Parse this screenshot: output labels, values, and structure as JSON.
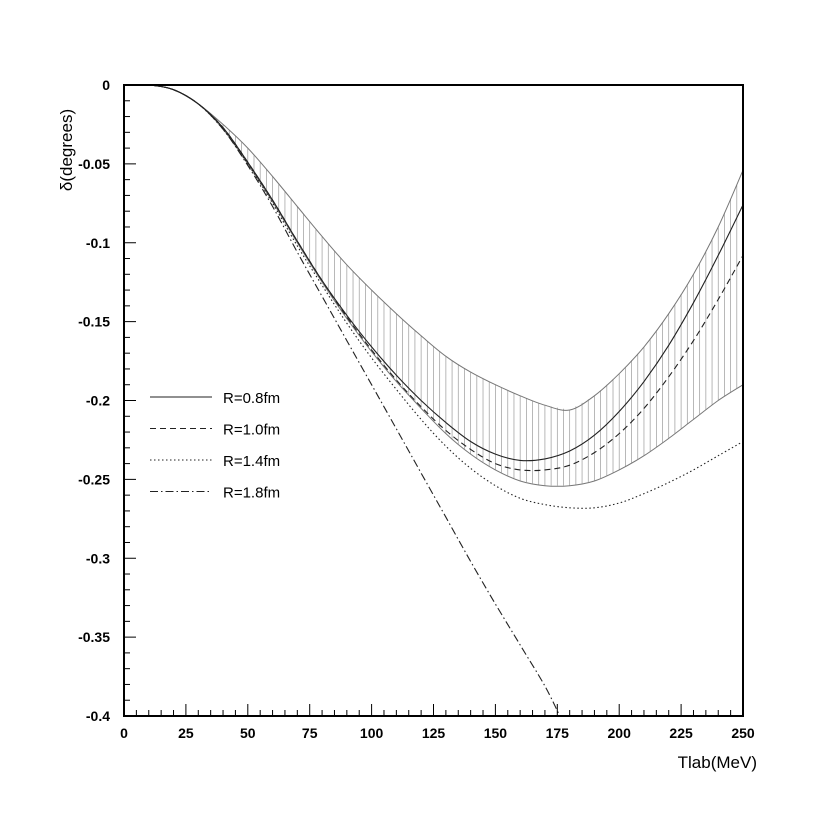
{
  "chart_data": {
    "type": "line",
    "title": "",
    "xlabel": "Tlab(MeV)",
    "ylabel": "δ(degrees)",
    "xlim": [
      0,
      250
    ],
    "ylim": [
      -0.4,
      0
    ],
    "x_ticks": [
      "0",
      "25",
      "50",
      "75",
      "100",
      "125",
      "150",
      "175",
      "200",
      "225",
      "250"
    ],
    "y_ticks": [
      "0",
      "-0.05",
      "-0.1",
      "-0.15",
      "-0.2",
      "-0.25",
      "-0.3",
      "-0.35",
      "-0.4"
    ],
    "grid": false,
    "legend_position": "left-middle",
    "band": {
      "style": "vertical-hatch",
      "upper": {
        "x": [
          0,
          10,
          20,
          30,
          40,
          50,
          60,
          70,
          80,
          90,
          100,
          110,
          120,
          130,
          140,
          150,
          160,
          170,
          180,
          190,
          200,
          210,
          220,
          230,
          240,
          250
        ],
        "y": [
          0,
          0,
          -0.003,
          -0.012,
          -0.025,
          -0.04,
          -0.058,
          -0.077,
          -0.096,
          -0.114,
          -0.13,
          -0.145,
          -0.159,
          -0.172,
          -0.182,
          -0.19,
          -0.197,
          -0.203,
          -0.206,
          -0.197,
          -0.183,
          -0.166,
          -0.145,
          -0.12,
          -0.09,
          -0.054
        ]
      },
      "lower": {
        "x": [
          0,
          10,
          20,
          30,
          40,
          50,
          60,
          70,
          80,
          90,
          100,
          110,
          120,
          130,
          140,
          150,
          160,
          170,
          180,
          190,
          200,
          210,
          220,
          230,
          240,
          250
        ],
        "y": [
          0,
          0,
          -0.003,
          -0.012,
          -0.028,
          -0.05,
          -0.074,
          -0.1,
          -0.125,
          -0.148,
          -0.169,
          -0.188,
          -0.205,
          -0.221,
          -0.234,
          -0.244,
          -0.251,
          -0.254,
          -0.254,
          -0.251,
          -0.244,
          -0.235,
          -0.224,
          -0.212,
          -0.2,
          -0.19
        ]
      }
    },
    "series": [
      {
        "name": "R=0.8fm",
        "dash": "solid",
        "x": [
          0,
          10,
          20,
          30,
          40,
          50,
          60,
          70,
          80,
          90,
          100,
          110,
          120,
          130,
          140,
          150,
          160,
          170,
          180,
          190,
          200,
          210,
          220,
          230,
          240,
          250
        ],
        "y": [
          0,
          0,
          -0.003,
          -0.012,
          -0.027,
          -0.049,
          -0.073,
          -0.099,
          -0.124,
          -0.146,
          -0.166,
          -0.184,
          -0.2,
          -0.214,
          -0.226,
          -0.234,
          -0.238,
          -0.237,
          -0.232,
          -0.222,
          -0.207,
          -0.188,
          -0.165,
          -0.138,
          -0.108,
          -0.076
        ]
      },
      {
        "name": "R=1.0fm",
        "dash": "dashed",
        "x": [
          0,
          10,
          20,
          30,
          40,
          50,
          60,
          70,
          80,
          90,
          100,
          110,
          120,
          130,
          140,
          150,
          160,
          170,
          180,
          190,
          200,
          210,
          220,
          230,
          240,
          250
        ],
        "y": [
          0,
          0,
          -0.003,
          -0.012,
          -0.027,
          -0.049,
          -0.073,
          -0.099,
          -0.124,
          -0.147,
          -0.168,
          -0.187,
          -0.204,
          -0.219,
          -0.231,
          -0.24,
          -0.244,
          -0.244,
          -0.241,
          -0.233,
          -0.221,
          -0.205,
          -0.185,
          -0.162,
          -0.136,
          -0.108
        ]
      },
      {
        "name": "R=1.4fm",
        "dash": "dotted",
        "x": [
          0,
          10,
          20,
          30,
          40,
          50,
          60,
          70,
          80,
          90,
          100,
          110,
          120,
          130,
          140,
          150,
          160,
          170,
          180,
          190,
          200,
          210,
          220,
          230,
          240,
          250
        ],
        "y": [
          0,
          0,
          -0.003,
          -0.012,
          -0.028,
          -0.05,
          -0.075,
          -0.102,
          -0.127,
          -0.151,
          -0.173,
          -0.193,
          -0.212,
          -0.229,
          -0.243,
          -0.254,
          -0.262,
          -0.266,
          -0.268,
          -0.268,
          -0.265,
          -0.259,
          -0.252,
          -0.244,
          -0.235,
          -0.226
        ]
      },
      {
        "name": "R=1.8fm",
        "dash": "dashdot",
        "x": [
          0,
          10,
          20,
          30,
          40,
          50,
          60,
          70,
          80,
          90,
          100,
          110,
          120,
          130,
          140,
          150,
          160,
          170,
          176
        ],
        "y": [
          0,
          0,
          -0.003,
          -0.012,
          -0.028,
          -0.051,
          -0.077,
          -0.106,
          -0.134,
          -0.162,
          -0.19,
          -0.218,
          -0.246,
          -0.274,
          -0.302,
          -0.329,
          -0.355,
          -0.381,
          -0.4
        ]
      }
    ]
  }
}
